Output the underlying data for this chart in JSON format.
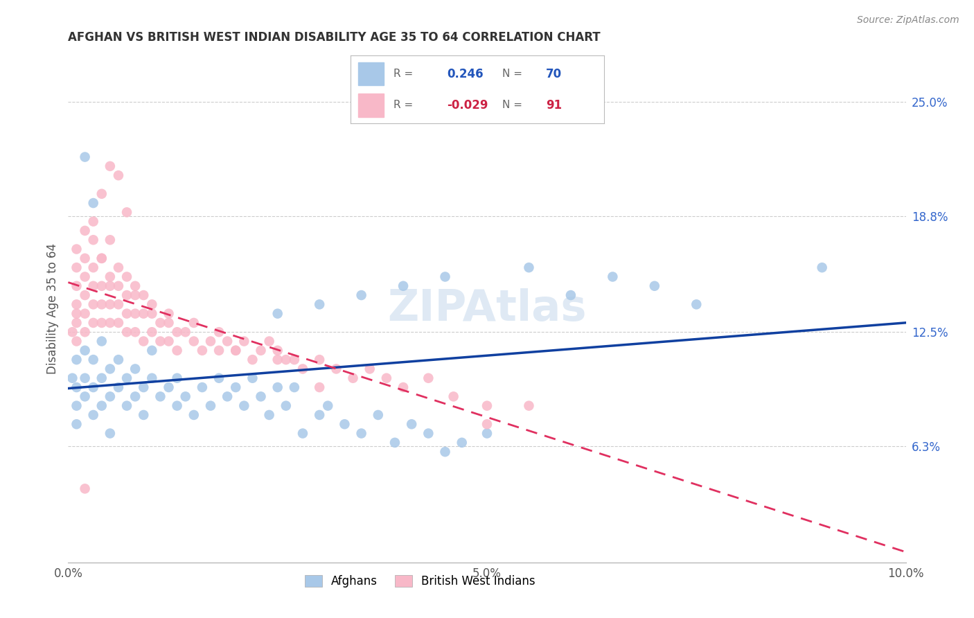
{
  "title": "AFGHAN VS BRITISH WEST INDIAN DISABILITY AGE 35 TO 64 CORRELATION CHART",
  "source": "Source: ZipAtlas.com",
  "ylabel": "Disability Age 35 to 64",
  "xlim": [
    0.0,
    0.1
  ],
  "ylim": [
    0.0,
    0.275
  ],
  "xticks": [
    0.0,
    0.025,
    0.05,
    0.075,
    0.1
  ],
  "xticklabels": [
    "0.0%",
    "",
    "5.0%",
    "",
    "10.0%"
  ],
  "yticks_right": [
    0.063,
    0.125,
    0.188,
    0.25
  ],
  "yticklabels_right": [
    "6.3%",
    "12.5%",
    "18.8%",
    "25.0%"
  ],
  "afghan_R": 0.246,
  "afghan_N": 70,
  "bwi_R": -0.029,
  "bwi_N": 91,
  "afghan_color": "#a8c8e8",
  "bwi_color": "#f8b8c8",
  "afghan_line_color": "#1040a0",
  "bwi_line_color": "#e03060",
  "watermark": "ZIPAtlas",
  "legend_label_afghan": "Afghans",
  "legend_label_bwi": "British West Indians",
  "afghan_x": [
    0.0005,
    0.001,
    0.001,
    0.001,
    0.001,
    0.002,
    0.002,
    0.002,
    0.003,
    0.003,
    0.003,
    0.004,
    0.004,
    0.004,
    0.005,
    0.005,
    0.005,
    0.006,
    0.006,
    0.007,
    0.007,
    0.008,
    0.008,
    0.009,
    0.009,
    0.01,
    0.01,
    0.011,
    0.012,
    0.013,
    0.013,
    0.014,
    0.015,
    0.016,
    0.017,
    0.018,
    0.019,
    0.02,
    0.021,
    0.022,
    0.023,
    0.024,
    0.025,
    0.026,
    0.027,
    0.028,
    0.03,
    0.031,
    0.033,
    0.035,
    0.037,
    0.039,
    0.041,
    0.043,
    0.045,
    0.047,
    0.05,
    0.025,
    0.03,
    0.035,
    0.04,
    0.045,
    0.055,
    0.06,
    0.065,
    0.07,
    0.075,
    0.09,
    0.002,
    0.003
  ],
  "afghan_y": [
    0.1,
    0.085,
    0.095,
    0.11,
    0.075,
    0.09,
    0.1,
    0.115,
    0.08,
    0.095,
    0.11,
    0.085,
    0.1,
    0.12,
    0.09,
    0.105,
    0.07,
    0.095,
    0.11,
    0.085,
    0.1,
    0.09,
    0.105,
    0.08,
    0.095,
    0.1,
    0.115,
    0.09,
    0.095,
    0.085,
    0.1,
    0.09,
    0.08,
    0.095,
    0.085,
    0.1,
    0.09,
    0.095,
    0.085,
    0.1,
    0.09,
    0.08,
    0.095,
    0.085,
    0.095,
    0.07,
    0.08,
    0.085,
    0.075,
    0.07,
    0.08,
    0.065,
    0.075,
    0.07,
    0.06,
    0.065,
    0.07,
    0.135,
    0.14,
    0.145,
    0.15,
    0.155,
    0.16,
    0.145,
    0.155,
    0.15,
    0.14,
    0.16,
    0.22,
    0.195
  ],
  "bwi_x": [
    0.0005,
    0.001,
    0.001,
    0.001,
    0.001,
    0.001,
    0.001,
    0.002,
    0.002,
    0.002,
    0.002,
    0.002,
    0.003,
    0.003,
    0.003,
    0.003,
    0.004,
    0.004,
    0.004,
    0.004,
    0.005,
    0.005,
    0.005,
    0.005,
    0.006,
    0.006,
    0.006,
    0.007,
    0.007,
    0.007,
    0.008,
    0.008,
    0.008,
    0.009,
    0.009,
    0.01,
    0.01,
    0.011,
    0.011,
    0.012,
    0.012,
    0.013,
    0.013,
    0.014,
    0.015,
    0.016,
    0.017,
    0.018,
    0.019,
    0.02,
    0.021,
    0.022,
    0.023,
    0.024,
    0.025,
    0.026,
    0.027,
    0.028,
    0.03,
    0.032,
    0.034,
    0.036,
    0.038,
    0.04,
    0.043,
    0.046,
    0.05,
    0.055,
    0.001,
    0.002,
    0.003,
    0.004,
    0.005,
    0.006,
    0.007,
    0.008,
    0.009,
    0.01,
    0.012,
    0.015,
    0.018,
    0.02,
    0.025,
    0.03,
    0.003,
    0.004,
    0.005,
    0.006,
    0.007,
    0.05,
    0.002
  ],
  "bwi_y": [
    0.125,
    0.12,
    0.13,
    0.14,
    0.15,
    0.16,
    0.135,
    0.125,
    0.135,
    0.145,
    0.155,
    0.165,
    0.13,
    0.14,
    0.15,
    0.16,
    0.13,
    0.14,
    0.15,
    0.165,
    0.13,
    0.14,
    0.15,
    0.155,
    0.13,
    0.14,
    0.15,
    0.125,
    0.135,
    0.145,
    0.125,
    0.135,
    0.145,
    0.12,
    0.135,
    0.125,
    0.135,
    0.12,
    0.13,
    0.12,
    0.13,
    0.125,
    0.115,
    0.125,
    0.12,
    0.115,
    0.12,
    0.115,
    0.12,
    0.115,
    0.12,
    0.11,
    0.115,
    0.12,
    0.115,
    0.11,
    0.11,
    0.105,
    0.11,
    0.105,
    0.1,
    0.105,
    0.1,
    0.095,
    0.1,
    0.09,
    0.085,
    0.085,
    0.17,
    0.18,
    0.175,
    0.165,
    0.175,
    0.16,
    0.155,
    0.15,
    0.145,
    0.14,
    0.135,
    0.13,
    0.125,
    0.115,
    0.11,
    0.095,
    0.185,
    0.2,
    0.215,
    0.21,
    0.19,
    0.075,
    0.04
  ]
}
